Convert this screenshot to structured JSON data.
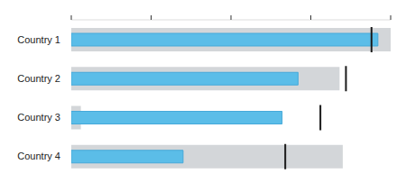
{
  "chart_data": {
    "type": "bullet",
    "orientation": "horizontal",
    "categories": [
      "Country 1",
      "Country 2",
      "Country 3",
      "Country 4"
    ],
    "series": [
      {
        "type": "bar",
        "color": "#d3d6d9",
        "values": [
          100,
          84,
          3,
          85
        ]
      },
      {
        "type": "bar",
        "color": "#5bbde8",
        "values": [
          96,
          71,
          66,
          35
        ]
      },
      {
        "type": "marker",
        "color": "#1a1a1a",
        "values": [
          94,
          86,
          78,
          67
        ]
      }
    ],
    "xlim": [
      0,
      100
    ],
    "xticks": [
      0,
      25,
      50,
      75,
      100
    ],
    "grid": false,
    "tick_labels": "y"
  }
}
